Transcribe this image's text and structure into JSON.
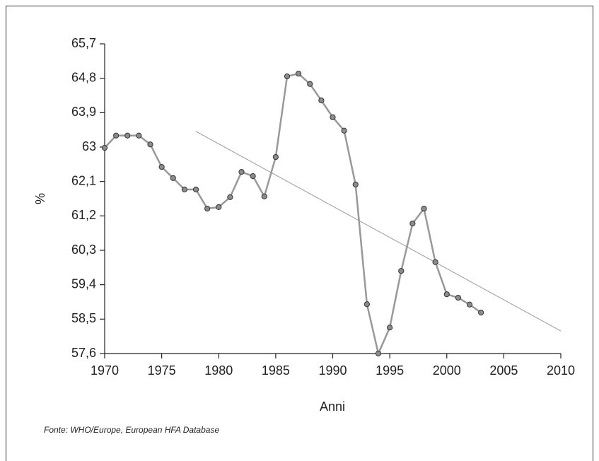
{
  "chart_data": {
    "type": "line",
    "x": [
      1970,
      1971,
      1972,
      1973,
      1974,
      1975,
      1976,
      1977,
      1978,
      1979,
      1980,
      1981,
      1982,
      1983,
      1984,
      1985,
      1986,
      1987,
      1988,
      1989,
      1990,
      1991,
      1992,
      1993,
      1994,
      1995,
      1996,
      1997,
      1998,
      1999,
      2000,
      2001,
      2002,
      2003
    ],
    "values": [
      62.98,
      63.3,
      63.3,
      63.3,
      63.07,
      62.48,
      62.19,
      61.89,
      61.89,
      61.39,
      61.43,
      61.69,
      62.35,
      62.24,
      61.71,
      62.74,
      64.85,
      64.92,
      64.65,
      64.22,
      63.78,
      63.43,
      62.02,
      58.89,
      57.6,
      58.28,
      59.76,
      61.0,
      61.39,
      59.99,
      59.15,
      59.06,
      58.88,
      58.67
    ],
    "color": "#999999",
    "marker_color": "#8c8c8c",
    "trend": {
      "x": [
        1978,
        2010
      ],
      "values": [
        63.41,
        58.19
      ],
      "color": "#999999"
    },
    "xlim": [
      1970,
      2010
    ],
    "xticks": [
      1970,
      1975,
      1980,
      1985,
      1990,
      1995,
      2000,
      2005,
      2010
    ],
    "ylim": [
      57.6,
      65.7
    ],
    "yticks": [
      {
        "value": 57.6,
        "label": "57,6"
      },
      {
        "value": 58.5,
        "label": "58,5"
      },
      {
        "value": 59.4,
        "label": "59,4"
      },
      {
        "value": 60.3,
        "label": "60,3"
      },
      {
        "value": 61.2,
        "label": "61,2"
      },
      {
        "value": 62.1,
        "label": "62,1"
      },
      63,
      {
        "value": 63.9,
        "label": "63,9"
      },
      {
        "value": 64.8,
        "label": "64,8"
      },
      {
        "value": 65.7,
        "label": "65,7"
      }
    ],
    "x_label": "Anni",
    "y_label": "%",
    "source": "Fonte: WHO/Europe,  European HFA Database"
  }
}
